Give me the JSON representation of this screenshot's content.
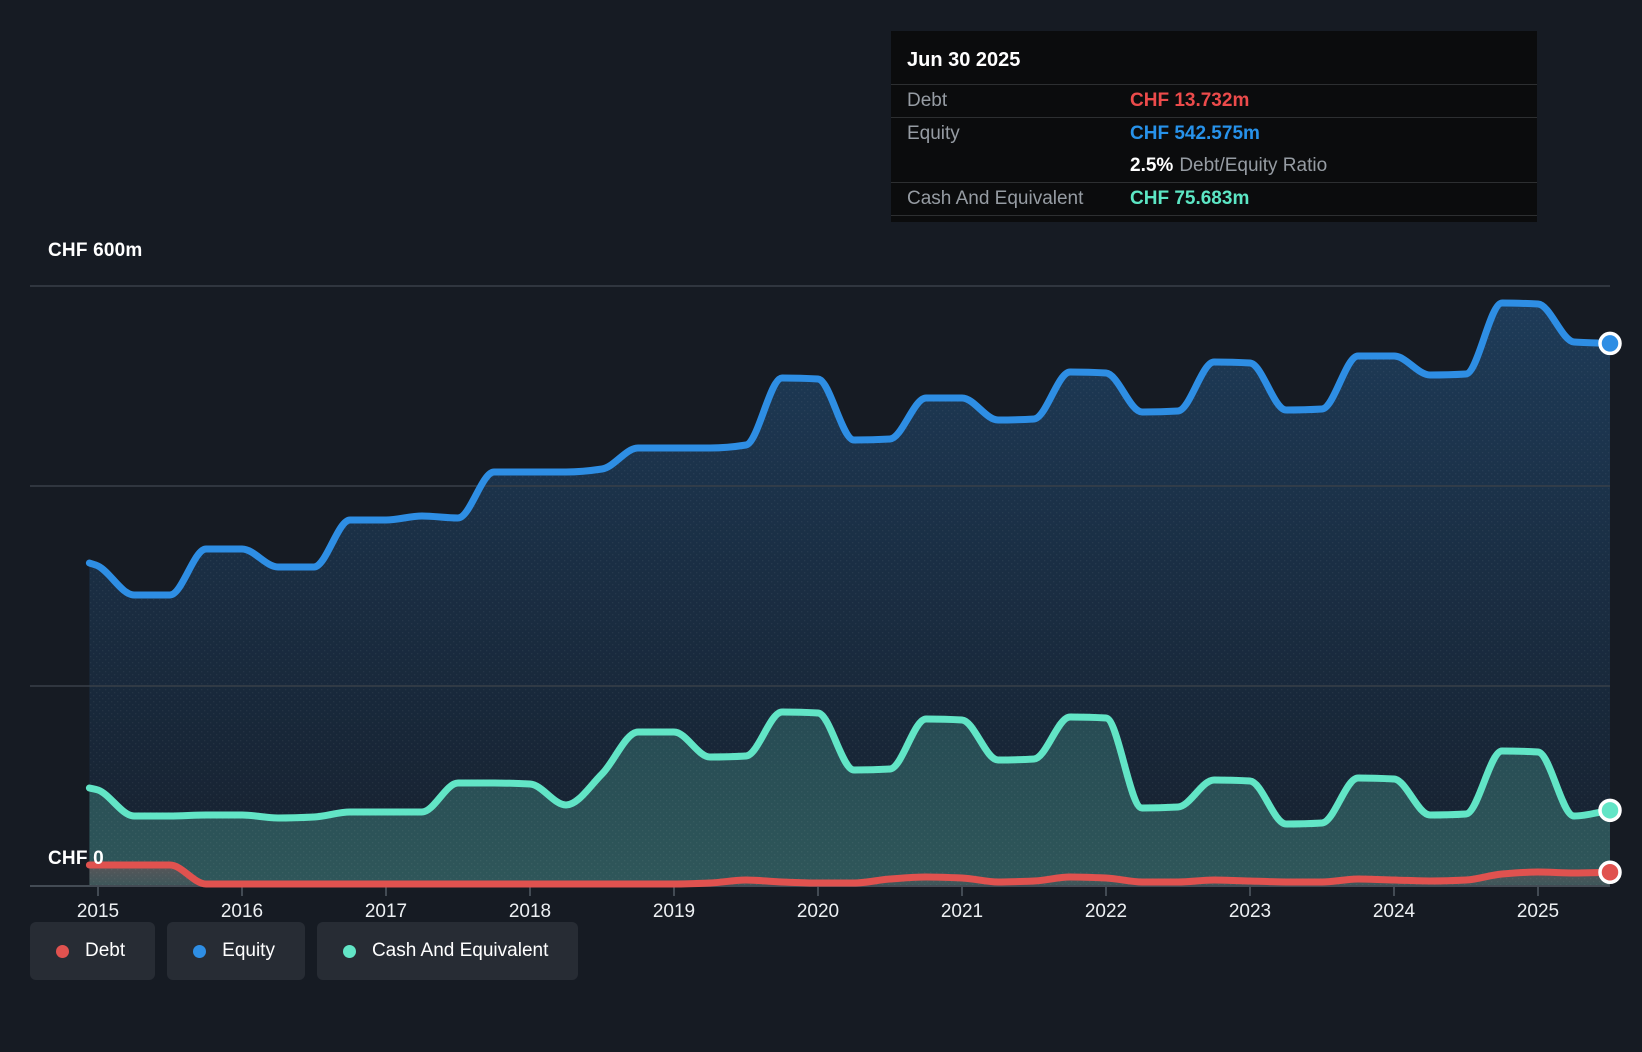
{
  "tooltip": {
    "date": "Jun 30 2025",
    "debt_label": "Debt",
    "debt_value": "CHF 13.732m",
    "equity_label": "Equity",
    "equity_value": "CHF 542.575m",
    "ratio_value": "2.5%",
    "ratio_label": "Debt/Equity Ratio",
    "cash_label": "Cash And Equivalent",
    "cash_value": "CHF 75.683m"
  },
  "axis": {
    "y_top_label": "CHF 600m",
    "y_zero_label": "CHF 0",
    "x_ticks": [
      "2015",
      "2016",
      "2017",
      "2018",
      "2019",
      "2020",
      "2021",
      "2022",
      "2023",
      "2024",
      "2025"
    ]
  },
  "legend": {
    "items": [
      {
        "label": "Debt",
        "color_key": "debt"
      },
      {
        "label": "Equity",
        "color_key": "equity"
      },
      {
        "label": "Cash And Equivalent",
        "color_key": "cash"
      }
    ]
  },
  "colors": {
    "background": "#161b23",
    "debt": "#e0524f",
    "equity": "#2e8ee4",
    "cash": "#62e5c6",
    "debt_text": "#ec4b4b",
    "equity_text": "#2792ea",
    "cash_text": "#5ce6c4",
    "grid": "#384049",
    "axis": "#434b54",
    "label_gray": "#969ca3",
    "tick_text": "#edf0f3",
    "tooltip_bg": "#0b0c0d",
    "legend_bg": "#272c34"
  },
  "chart_data": {
    "type": "area",
    "title": "",
    "xlabel": "",
    "ylabel": "CHF (millions)",
    "ylim": [
      0,
      600
    ],
    "xlim": [
      2014.94,
      2025.5
    ],
    "grid_values": [
      600,
      400,
      200,
      0
    ],
    "legend_position": "bottom-left",
    "currency": "CHF",
    "unit": "m",
    "x": [
      2014.94,
      2015,
      2015.25,
      2015.5,
      2015.75,
      2016,
      2016.25,
      2016.5,
      2016.75,
      2017,
      2017.25,
      2017.5,
      2017.75,
      2018,
      2018.25,
      2018.5,
      2018.75,
      2019,
      2019.25,
      2019.5,
      2019.75,
      2020,
      2020.25,
      2020.5,
      2020.75,
      2021,
      2021.25,
      2021.5,
      2021.75,
      2022,
      2022.25,
      2022.5,
      2022.75,
      2023,
      2023.25,
      2023.5,
      2023.75,
      2024,
      2024.25,
      2024.5,
      2024.75,
      2025,
      2025.25,
      2025.5
    ],
    "series": [
      {
        "name": "Equity",
        "color_key": "equity",
        "values": [
          323,
          320,
          291,
          291,
          337,
          337,
          319,
          319,
          366,
          366,
          370,
          368,
          414,
          414,
          414,
          417,
          438,
          438,
          438,
          441,
          508,
          507,
          446,
          447,
          488,
          488,
          466,
          467,
          514,
          513,
          474,
          475,
          524,
          523,
          476,
          477,
          530,
          530,
          511,
          512,
          583,
          582,
          544,
          542.575
        ],
        "last_value_label": "CHF 542.575m"
      },
      {
        "name": "Cash And Equivalent",
        "color_key": "cash",
        "values": [
          98,
          96,
          70,
          70,
          71,
          71,
          68,
          69,
          74,
          74,
          74,
          103,
          103,
          102,
          81,
          112,
          154,
          154,
          129,
          130,
          174,
          173,
          116,
          117,
          167,
          166,
          126,
          127,
          169,
          168,
          78,
          79,
          106,
          105,
          62,
          63,
          108,
          107,
          71,
          72,
          135,
          134,
          70,
          75.683
        ],
        "last_value_label": "CHF 75.683m"
      },
      {
        "name": "Debt",
        "color_key": "debt",
        "values": [
          21,
          21,
          21,
          21,
          2,
          2,
          2,
          2,
          2,
          2,
          2,
          2,
          2,
          2,
          2,
          2,
          2,
          2,
          3,
          6,
          4,
          3,
          3,
          7,
          9,
          8,
          4,
          5,
          9,
          8,
          4,
          4,
          6,
          5,
          4,
          4,
          7,
          6,
          5,
          6,
          12,
          14,
          13,
          13.732
        ],
        "last_value_label": "CHF 13.732m"
      }
    ]
  }
}
